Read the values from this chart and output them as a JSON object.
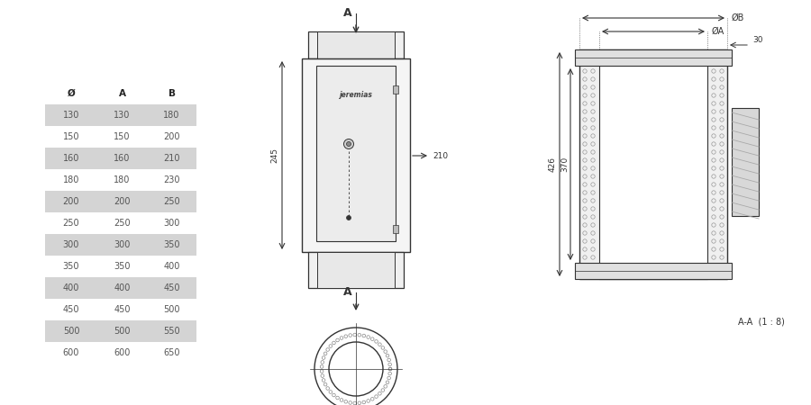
{
  "bg_color": "#ffffff",
  "table_data": {
    "headers": [
      "Ø",
      "A",
      "B"
    ],
    "rows": [
      [
        130,
        130,
        180
      ],
      [
        150,
        150,
        200
      ],
      [
        160,
        160,
        210
      ],
      [
        180,
        180,
        230
      ],
      [
        200,
        200,
        250
      ],
      [
        250,
        250,
        300
      ],
      [
        300,
        300,
        350
      ],
      [
        350,
        350,
        400
      ],
      [
        400,
        400,
        450
      ],
      [
        450,
        450,
        500
      ],
      [
        500,
        500,
        550
      ],
      [
        600,
        600,
        650
      ]
    ],
    "shaded_rows": [
      0,
      2,
      4,
      6,
      8,
      10
    ],
    "shade_color": "#d4d4d4",
    "text_color": "#555555",
    "header_color": "#222222"
  },
  "dim_color": "#333333",
  "draw_color": "#333333",
  "label_fontsize": 7.0,
  "dim_fontsize": 6.5
}
